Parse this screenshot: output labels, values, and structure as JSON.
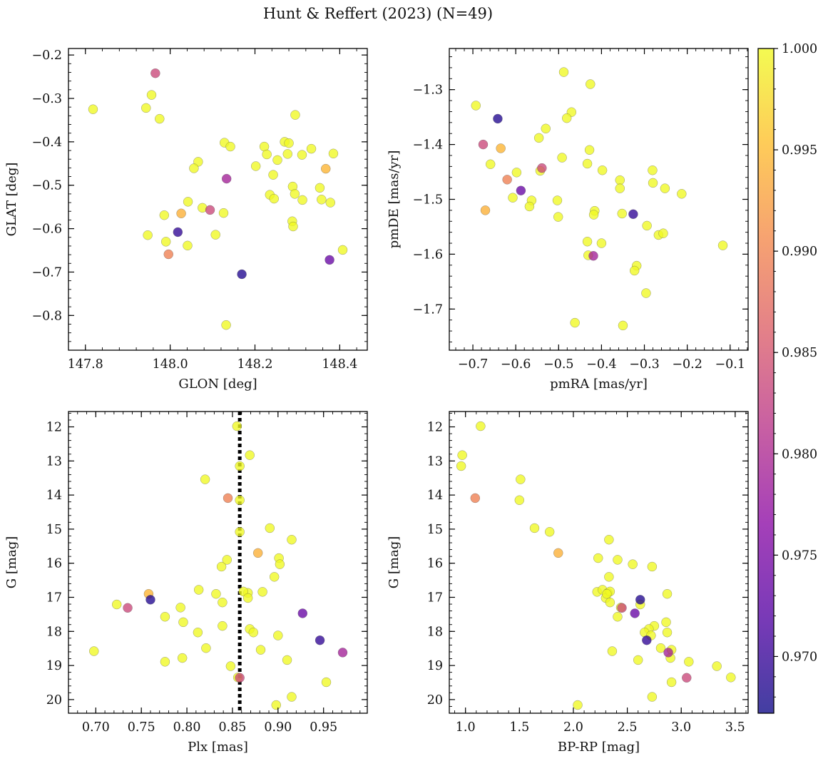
{
  "title": "Hunt & Reffert (2023) (N=49)",
  "colorbar": {
    "min": 0.9672,
    "max": 1.0,
    "ticks": [
      0.97,
      0.975,
      0.98,
      0.985,
      0.99,
      0.995,
      1.0
    ],
    "tick_labels": [
      "0.970",
      "0.975",
      "0.980",
      "0.985",
      "0.990",
      "0.995",
      "1.000"
    ],
    "colormap": "plasma",
    "colormap_stops": [
      "#0d0887",
      "#5302a3",
      "#8b0aa5",
      "#b83289",
      "#db5c68",
      "#f48849",
      "#febd2a",
      "#f0f921"
    ]
  },
  "marker_alpha": 0.78,
  "marker_edge_color": "#555555",
  "parallax_line": {
    "x": 0.858,
    "style": "dotted",
    "color": "#000000"
  },
  "chart_data": [
    {
      "type": "scatter",
      "xlabel": "GLON [deg]",
      "ylabel": "GLAT [deg]",
      "xlim": [
        147.76,
        148.465
      ],
      "ylim": [
        -0.88,
        -0.185
      ],
      "xticks": [
        147.8,
        148.0,
        148.2,
        148.4
      ],
      "xtick_labels": [
        "147.8",
        "148.0",
        "148.2",
        "148.4"
      ],
      "yticks": [
        -0.2,
        -0.3,
        -0.4,
        -0.5,
        -0.6,
        -0.7,
        -0.8
      ],
      "ytick_labels": [
        "−0.2",
        "−0.3",
        "−0.4",
        "−0.5",
        "−0.6",
        "−0.7",
        "−0.8"
      ],
      "x": [
        147.818,
        147.943,
        147.956,
        147.975,
        147.965,
        148.27,
        148.295,
        148.28,
        148.128,
        148.142,
        148.222,
        148.228,
        148.253,
        148.277,
        148.311,
        148.333,
        148.385,
        148.202,
        148.243,
        148.066,
        148.056,
        148.133,
        148.235,
        148.289,
        148.294,
        148.353,
        148.312,
        148.245,
        148.357,
        148.378,
        148.042,
        148.076,
        147.986,
        148.126,
        148.288,
        148.29,
        147.947,
        147.99,
        148.107,
        148.041,
        148.407,
        148.132,
        148.026,
        148.094,
        148.367,
        148.018,
        147.996,
        148.376,
        148.169
      ],
      "y": [
        -0.325,
        -0.322,
        -0.292,
        -0.347,
        -0.242,
        -0.4,
        -0.338,
        -0.403,
        -0.402,
        -0.411,
        -0.411,
        -0.429,
        -0.442,
        -0.428,
        -0.43,
        -0.416,
        -0.427,
        -0.456,
        -0.476,
        -0.446,
        -0.461,
        -0.485,
        -0.522,
        -0.503,
        -0.52,
        -0.506,
        -0.534,
        -0.531,
        -0.533,
        -0.54,
        -0.538,
        -0.552,
        -0.569,
        -0.564,
        -0.583,
        -0.595,
        -0.615,
        -0.63,
        -0.614,
        -0.639,
        -0.649,
        -0.822,
        -0.565,
        -0.557,
        -0.462,
        -0.608,
        -0.659,
        -0.672,
        -0.705
      ],
      "color_values": [
        1,
        1,
        1,
        1,
        0.9835,
        1,
        1,
        1,
        1,
        1,
        1,
        1,
        1,
        1,
        1,
        1,
        1,
        1,
        1,
        1,
        1,
        0.979,
        1,
        1,
        1,
        1,
        1,
        1,
        1,
        1,
        1,
        1,
        1,
        1,
        1,
        1,
        1,
        1,
        1,
        1,
        1,
        1,
        0.994,
        0.9835,
        0.9945,
        0.9695,
        0.9895,
        0.9735,
        0.9685
      ]
    },
    {
      "type": "scatter",
      "xlabel": "pmRA [mas/yr]",
      "ylabel": "pmDE [mas/yr]",
      "xlim": [
        -0.755,
        -0.058
      ],
      "ylim": [
        -1.775,
        -1.225
      ],
      "xticks": [
        -0.7,
        -0.6,
        -0.5,
        -0.4,
        -0.3,
        -0.2,
        -0.1
      ],
      "xtick_labels": [
        "−0.7",
        "−0.6",
        "−0.5",
        "−0.4",
        "−0.3",
        "−0.2",
        "−0.1"
      ],
      "yticks": [
        -1.3,
        -1.4,
        -1.5,
        -1.6,
        -1.7
      ],
      "ytick_labels": [
        "−1.3",
        "−1.4",
        "−1.5",
        "−1.6",
        "−1.7"
      ],
      "x": [
        -0.488,
        -0.426,
        -0.693,
        -0.47,
        -0.481,
        -0.53,
        -0.546,
        -0.428,
        -0.492,
        -0.433,
        -0.659,
        -0.598,
        -0.398,
        -0.543,
        -0.281,
        -0.357,
        -0.28,
        -0.252,
        -0.213,
        -0.357,
        -0.563,
        -0.607,
        -0.568,
        -0.503,
        -0.416,
        -0.352,
        -0.418,
        -0.501,
        -0.294,
        -0.267,
        -0.256,
        -0.117,
        -0.433,
        -0.4,
        -0.431,
        -0.318,
        -0.323,
        -0.296,
        -0.462,
        -0.35,
        -0.642,
        -0.676,
        -0.635,
        -0.539,
        -0.62,
        -0.588,
        -0.671,
        -0.419,
        -0.326
      ],
      "y": [
        -1.268,
        -1.29,
        -1.329,
        -1.341,
        -1.352,
        -1.371,
        -1.388,
        -1.41,
        -1.424,
        -1.435,
        -1.436,
        -1.451,
        -1.447,
        -1.448,
        -1.447,
        -1.465,
        -1.47,
        -1.48,
        -1.49,
        -1.48,
        -1.502,
        -1.497,
        -1.513,
        -1.502,
        -1.521,
        -1.526,
        -1.528,
        -1.532,
        -1.548,
        -1.565,
        -1.562,
        -1.584,
        -1.577,
        -1.58,
        -1.602,
        -1.621,
        -1.63,
        -1.671,
        -1.725,
        -1.73,
        -1.353,
        -1.4,
        -1.407,
        -1.443,
        -1.464,
        -1.484,
        -1.52,
        -1.603,
        -1.527
      ],
      "color_values": [
        1,
        1,
        1,
        1,
        1,
        1,
        1,
        1,
        1,
        1,
        1,
        1,
        1,
        1,
        1,
        1,
        1,
        1,
        1,
        1,
        1,
        1,
        1,
        1,
        1,
        1,
        1,
        1,
        1,
        1,
        1,
        1,
        1,
        1,
        1,
        1,
        1,
        1,
        1,
        1,
        0.9685,
        0.9835,
        0.9945,
        0.9835,
        0.9895,
        0.9735,
        0.994,
        0.979,
        0.9695
      ]
    },
    {
      "type": "scatter",
      "xlabel": "Plx [mas]",
      "ylabel": "G [mag]",
      "xlim": [
        0.67,
        0.998
      ],
      "ylim": [
        20.4,
        11.55
      ],
      "xticks": [
        0.7,
        0.75,
        0.8,
        0.85,
        0.9,
        0.95
      ],
      "xtick_labels": [
        "0.70",
        "0.75",
        "0.80",
        "0.85",
        "0.90",
        "0.95"
      ],
      "yticks": [
        12,
        13,
        14,
        15,
        16,
        17,
        18,
        19,
        20
      ],
      "ytick_labels": [
        "12",
        "13",
        "14",
        "15",
        "16",
        "17",
        "18",
        "19",
        "20"
      ],
      "x": [
        0.855,
        0.869,
        0.858,
        0.82,
        0.858,
        0.858,
        0.891,
        0.915,
        0.901,
        0.838,
        0.844,
        0.896,
        0.902,
        0.813,
        0.832,
        0.867,
        0.883,
        0.839,
        0.862,
        0.867,
        0.723,
        0.793,
        0.776,
        0.796,
        0.839,
        0.812,
        0.869,
        0.873,
        0.698,
        0.821,
        0.881,
        0.9,
        0.795,
        0.776,
        0.848,
        0.91,
        0.856,
        0.953,
        0.898,
        0.915,
        0.845,
        0.878,
        0.758,
        0.76,
        0.735,
        0.927,
        0.946,
        0.971,
        0.858
      ],
      "y": [
        11.98,
        12.83,
        13.15,
        13.54,
        14.15,
        15.08,
        14.97,
        15.31,
        15.85,
        16.1,
        15.9,
        16.4,
        16.03,
        16.78,
        16.9,
        16.87,
        16.84,
        17.15,
        16.83,
        17.02,
        17.21,
        17.3,
        17.57,
        17.73,
        17.84,
        18.03,
        17.93,
        18.03,
        18.58,
        18.49,
        18.54,
        18.12,
        18.78,
        18.89,
        19.02,
        18.84,
        19.35,
        19.49,
        20.16,
        19.92,
        14.09,
        15.7,
        16.9,
        17.07,
        17.31,
        17.47,
        18.26,
        18.62,
        19.36
      ],
      "color_values": [
        1,
        1,
        1,
        1,
        1,
        1,
        1,
        1,
        1,
        1,
        1,
        1,
        1,
        1,
        1,
        1,
        1,
        1,
        1,
        1,
        1,
        1,
        1,
        1,
        1,
        1,
        1,
        1,
        1,
        1,
        1,
        1,
        1,
        1,
        1,
        1,
        1,
        1,
        1,
        1,
        0.9895,
        0.994,
        0.9945,
        0.9685,
        0.9835,
        0.9735,
        0.9695,
        0.979,
        0.9835
      ]
    },
    {
      "type": "scatter",
      "xlabel": "BP-RP [mag]",
      "ylabel": "G [mag]",
      "xlim": [
        0.85,
        3.62
      ],
      "ylim": [
        20.4,
        11.55
      ],
      "xticks": [
        1.0,
        1.5,
        2.0,
        2.5,
        3.0,
        3.5
      ],
      "xtick_labels": [
        "1.0",
        "1.5",
        "2.0",
        "2.5",
        "3.0",
        "3.5"
      ],
      "yticks": [
        12,
        13,
        14,
        15,
        16,
        17,
        18,
        19,
        20
      ],
      "ytick_labels": [
        "12",
        "13",
        "14",
        "15",
        "16",
        "17",
        "18",
        "19",
        "20"
      ],
      "x": [
        1.14,
        0.97,
        0.96,
        1.51,
        1.5,
        1.64,
        1.78,
        2.33,
        2.23,
        2.41,
        2.55,
        2.33,
        2.73,
        2.22,
        2.27,
        2.32,
        2.3,
        2.34,
        2.62,
        2.44,
        2.41,
        2.87,
        2.75,
        2.7,
        2.66,
        2.87,
        2.72,
        2.81,
        2.36,
        2.91,
        2.6,
        2.9,
        3.07,
        3.33,
        3.46,
        2.73,
        2.91,
        2.04,
        2.34,
        2.31,
        2.86,
        1.09,
        1.86,
        2.62,
        2.45,
        2.57,
        2.68,
        2.88,
        3.05
      ],
      "y": [
        11.98,
        12.83,
        13.15,
        13.54,
        14.15,
        14.97,
        15.08,
        15.31,
        15.85,
        15.9,
        16.03,
        16.4,
        16.1,
        16.84,
        16.78,
        16.87,
        17.02,
        17.15,
        17.21,
        17.3,
        17.57,
        16.9,
        17.84,
        17.93,
        18.03,
        18.03,
        18.12,
        18.49,
        18.58,
        18.54,
        18.84,
        18.78,
        18.89,
        19.02,
        19.35,
        19.92,
        19.49,
        20.16,
        16.83,
        16.9,
        17.73,
        14.09,
        15.7,
        17.07,
        17.31,
        17.47,
        18.26,
        18.62,
        19.36
      ],
      "color_values": [
        1,
        1,
        1,
        1,
        1,
        1,
        1,
        1,
        1,
        1,
        1,
        1,
        1,
        1,
        1,
        1,
        1,
        1,
        1,
        1,
        1,
        1,
        1,
        1,
        1,
        1,
        1,
        1,
        1,
        1,
        1,
        1,
        1,
        1,
        1,
        1,
        1,
        1,
        1,
        1,
        1,
        0.9895,
        0.994,
        0.9685,
        0.9835,
        0.9735,
        0.9695,
        0.979,
        0.9835
      ]
    }
  ]
}
